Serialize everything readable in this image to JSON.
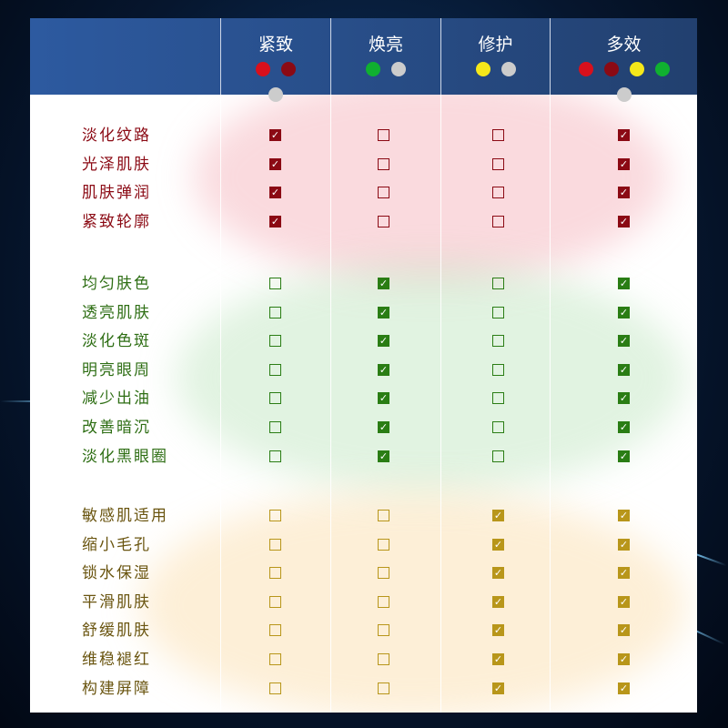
{
  "columns": [
    {
      "label": "紧致",
      "dots": [
        "#d8101c",
        "#8b0a14",
        "#cccccc"
      ]
    },
    {
      "label": "焕亮",
      "dots": [
        "#10b030",
        "#cccccc"
      ]
    },
    {
      "label": "修护",
      "dots": [
        "#f5e81a",
        "#cccccc"
      ]
    },
    {
      "label": "多效",
      "dots": [
        "#d8101c",
        "#8b0a14",
        "#f5e81a",
        "#10b030",
        "#cccccc"
      ]
    }
  ],
  "groups": [
    {
      "color": "#8b0a14",
      "text_color": "#8b0a14",
      "rows": [
        {
          "label": "淡化纹路",
          "checks": [
            true,
            false,
            false,
            true
          ]
        },
        {
          "label": "光泽肌肤",
          "checks": [
            true,
            false,
            false,
            true
          ]
        },
        {
          "label": "肌肤弹润",
          "checks": [
            true,
            false,
            false,
            true
          ]
        },
        {
          "label": "紧致轮廓",
          "checks": [
            true,
            false,
            false,
            true
          ]
        }
      ]
    },
    {
      "color": "#2a7d14",
      "text_color": "#2e6e14",
      "rows": [
        {
          "label": "均匀肤色",
          "checks": [
            false,
            true,
            false,
            true
          ]
        },
        {
          "label": "透亮肌肤",
          "checks": [
            false,
            true,
            false,
            true
          ]
        },
        {
          "label": "淡化色斑",
          "checks": [
            false,
            true,
            false,
            true
          ]
        },
        {
          "label": "明亮眼周",
          "checks": [
            false,
            true,
            false,
            true
          ]
        },
        {
          "label": "减少出油",
          "checks": [
            false,
            true,
            false,
            true
          ]
        },
        {
          "label": "改善暗沉",
          "checks": [
            false,
            true,
            false,
            true
          ]
        },
        {
          "label": "淡化黑眼圈",
          "checks": [
            false,
            true,
            false,
            true
          ]
        }
      ]
    },
    {
      "color": "#b8961a",
      "text_color": "#6a5510",
      "rows": [
        {
          "label": "敏感肌适用",
          "checks": [
            false,
            false,
            true,
            true
          ]
        },
        {
          "label": "缩小毛孔",
          "checks": [
            false,
            false,
            true,
            true
          ]
        },
        {
          "label": "锁水保湿",
          "checks": [
            false,
            false,
            true,
            true
          ]
        },
        {
          "label": "平滑肌肤",
          "checks": [
            false,
            false,
            true,
            true
          ]
        },
        {
          "label": "舒缓肌肤",
          "checks": [
            false,
            false,
            true,
            true
          ]
        },
        {
          "label": "维稳褪红",
          "checks": [
            false,
            false,
            true,
            true
          ]
        },
        {
          "label": "构建屏障",
          "checks": [
            false,
            false,
            true,
            true
          ]
        }
      ]
    }
  ]
}
